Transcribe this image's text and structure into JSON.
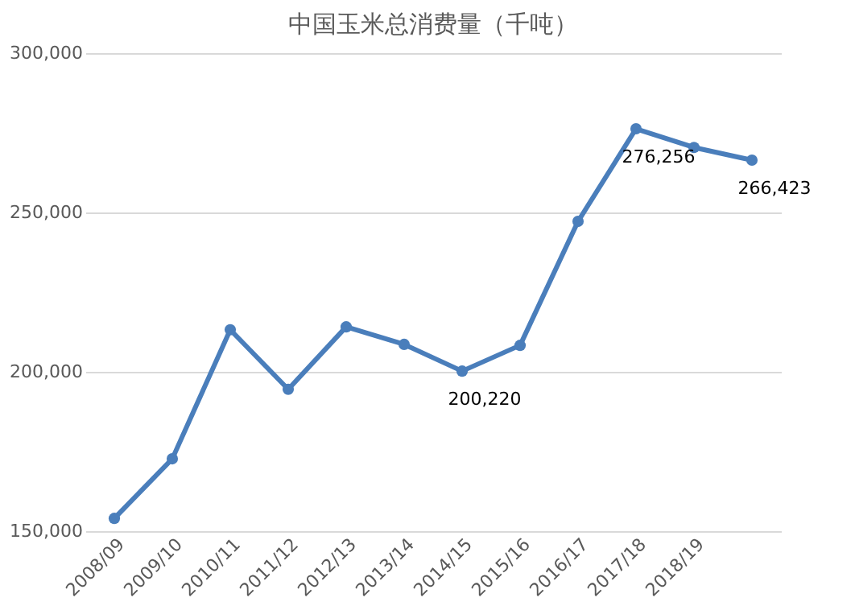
{
  "chart_data": {
    "type": "line",
    "title": "中国玉米总消费量（千吨）",
    "categories": [
      "2008/09",
      "2009/10",
      "2010/11",
      "2011/12",
      "2012/13",
      "2013/14",
      "2014/15",
      "2015/16",
      "2016/17",
      "2017/18",
      "2018/19",
      null
    ],
    "series": [
      {
        "color": "#4a7ebb",
        "values": [
          154000,
          172700,
          213200,
          194500,
          214100,
          208600,
          200220,
          208300,
          247200,
          276256,
          270400,
          266423
        ],
        "value_labels": [
          null,
          null,
          null,
          null,
          null,
          null,
          "200,220",
          null,
          null,
          "276,256",
          null,
          "266,423"
        ]
      }
    ],
    "ylim": [
      150000,
      300000
    ],
    "yticks": [
      {
        "value": 150000,
        "label": "150,000"
      },
      {
        "value": 200000,
        "label": "200,000"
      },
      {
        "value": 250000,
        "label": "250,000"
      },
      {
        "value": 300000,
        "label": "300,000"
      }
    ],
    "grid": "y",
    "marker": "circle",
    "line_style": "solid"
  }
}
